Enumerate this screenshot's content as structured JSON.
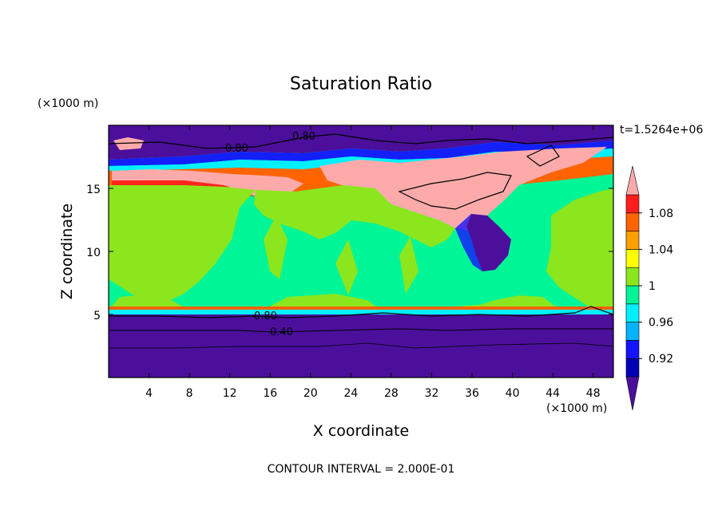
{
  "chart_data": {
    "type": "heatmap",
    "title": "Saturation Ratio",
    "xlabel": "X coordinate",
    "ylabel": "Z coordinate",
    "x_unit": "(×1000 m)",
    "y_unit": "(×1000 m)",
    "xlim": [
      0,
      50
    ],
    "ylim": [
      0,
      20
    ],
    "x_ticks": [
      4,
      8,
      12,
      16,
      20,
      24,
      28,
      32,
      36,
      40,
      44,
      48
    ],
    "y_ticks": [
      5,
      10,
      15
    ],
    "time_label": "t=1.5264e+06",
    "footer": "CONTOUR INTERVAL = 2.000E-01",
    "colorbar": {
      "labels": [
        "1.08",
        "1.04",
        "1",
        "0.96",
        "0.92"
      ],
      "levels": [
        0.9,
        0.92,
        0.94,
        0.96,
        0.98,
        1.0,
        1.02,
        1.04,
        1.06,
        1.08,
        1.1
      ],
      "colors": [
        "#4b0f9c",
        "#0000b4",
        "#1414ff",
        "#00b4ff",
        "#00f0ff",
        "#00f596",
        "#8ce61e",
        "#ffff00",
        "#ffa000",
        "#ff6400",
        "#ff1e1e",
        "#ffaaaa"
      ],
      "extend": "both"
    },
    "contour_labels": [
      "0.80",
      "0.80",
      "0.80",
      "0.40"
    ]
  }
}
